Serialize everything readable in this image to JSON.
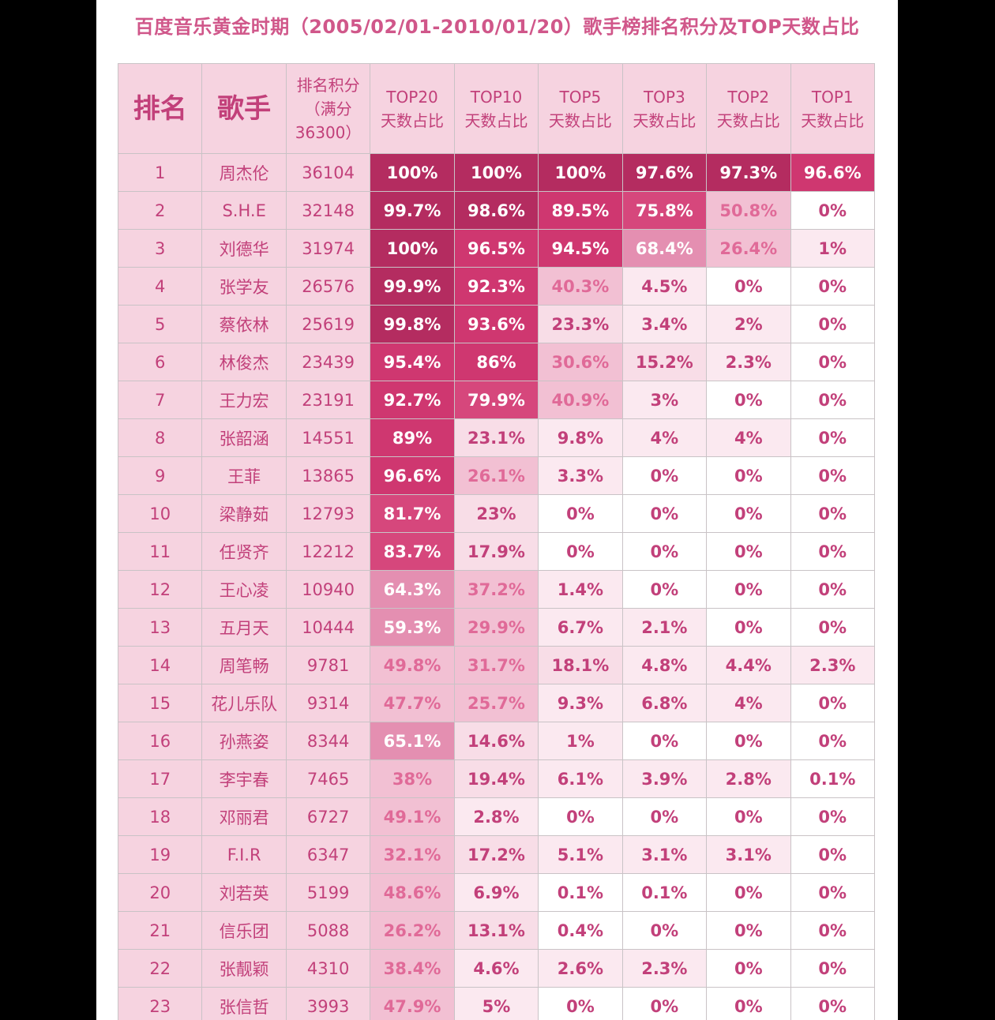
{
  "title": "百度音乐黄金时期（2005/02/01-2010/01/20）歌手榜排名积分及TOP天数占比",
  "header": [
    [
      "排名"
    ],
    [
      "歌手"
    ],
    [
      "排名积分",
      "（满分",
      "36300）"
    ],
    [
      "TOP20",
      "天数占比"
    ],
    [
      "TOP10",
      "天数占比"
    ],
    [
      "TOP5",
      "天数占比"
    ],
    [
      "TOP3",
      "天数占比"
    ],
    [
      "TOP2",
      "天数占比"
    ],
    [
      "TOP1",
      "天数占比"
    ]
  ],
  "rows": [
    [
      "1",
      "周杰伦",
      "36104",
      "100%",
      "100%",
      "100%",
      "97.6%",
      "97.3%",
      "96.6%"
    ],
    [
      "2",
      "S.H.E",
      "32148",
      "99.7%",
      "98.6%",
      "89.5%",
      "75.8%",
      "50.8%",
      "0%"
    ],
    [
      "3",
      "刘德华",
      "31974",
      "100%",
      "96.5%",
      "94.5%",
      "68.4%",
      "26.4%",
      "1%"
    ],
    [
      "4",
      "张学友",
      "26576",
      "99.9%",
      "92.3%",
      "40.3%",
      "4.5%",
      "0%",
      "0%"
    ],
    [
      "5",
      "蔡依林",
      "25619",
      "99.8%",
      "93.6%",
      "23.3%",
      "3.4%",
      "2%",
      "0%"
    ],
    [
      "6",
      "林俊杰",
      "23439",
      "95.4%",
      "86%",
      "30.6%",
      "15.2%",
      "2.3%",
      "0%"
    ],
    [
      "7",
      "王力宏",
      "23191",
      "92.7%",
      "79.9%",
      "40.9%",
      "3%",
      "0%",
      "0%"
    ],
    [
      "8",
      "张韶涵",
      "14551",
      "89%",
      "23.1%",
      "9.8%",
      "4%",
      "4%",
      "0%"
    ],
    [
      "9",
      "王菲",
      "13865",
      "96.6%",
      "26.1%",
      "3.3%",
      "0%",
      "0%",
      "0%"
    ],
    [
      "10",
      "梁静茹",
      "12793",
      "81.7%",
      "23%",
      "0%",
      "0%",
      "0%",
      "0%"
    ],
    [
      "11",
      "任贤齐",
      "12212",
      "83.7%",
      "17.9%",
      "0%",
      "0%",
      "0%",
      "0%"
    ],
    [
      "12",
      "王心凌",
      "10940",
      "64.3%",
      "37.2%",
      "1.4%",
      "0%",
      "0%",
      "0%"
    ],
    [
      "13",
      "五月天",
      "10444",
      "59.3%",
      "29.9%",
      "6.7%",
      "2.1%",
      "0%",
      "0%"
    ],
    [
      "14",
      "周笔畅",
      "9781",
      "49.8%",
      "31.7%",
      "18.1%",
      "4.8%",
      "4.4%",
      "2.3%"
    ],
    [
      "15",
      "花儿乐队",
      "9314",
      "47.7%",
      "25.7%",
      "9.3%",
      "6.8%",
      "4%",
      "0%"
    ],
    [
      "16",
      "孙燕姿",
      "8344",
      "65.1%",
      "14.6%",
      "1%",
      "0%",
      "0%",
      "0%"
    ],
    [
      "17",
      "李宇春",
      "7465",
      "38%",
      "19.4%",
      "6.1%",
      "3.9%",
      "2.8%",
      "0.1%"
    ],
    [
      "18",
      "邓丽君",
      "6727",
      "49.1%",
      "2.8%",
      "0%",
      "0%",
      "0%",
      "0%"
    ],
    [
      "19",
      "F.I.R",
      "6347",
      "32.1%",
      "17.2%",
      "5.1%",
      "3.1%",
      "3.1%",
      "0%"
    ],
    [
      "20",
      "刘若英",
      "5199",
      "48.6%",
      "6.9%",
      "0.1%",
      "0.1%",
      "0%",
      "0%"
    ],
    [
      "21",
      "信乐团",
      "5088",
      "26.2%",
      "13.1%",
      "0.4%",
      "0%",
      "0%",
      "0%"
    ],
    [
      "22",
      "张靓颖",
      "4310",
      "38.4%",
      "4.6%",
      "2.6%",
      "2.3%",
      "0%",
      "0%"
    ],
    [
      "23",
      "张信哲",
      "3993",
      "47.9%",
      "5%",
      "0%",
      "0%",
      "0%",
      "0%"
    ]
  ]
}
